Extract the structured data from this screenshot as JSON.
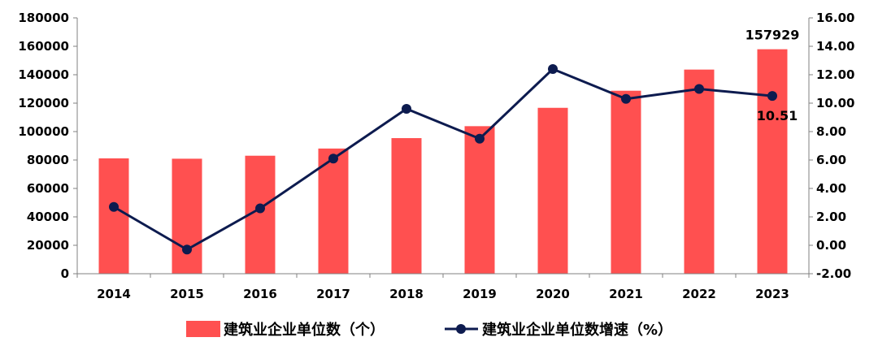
{
  "chart_data": {
    "type": "bar",
    "title": "",
    "categories": [
      "2014",
      "2015",
      "2016",
      "2017",
      "2018",
      "2019",
      "2020",
      "2021",
      "2022",
      "2023"
    ],
    "series": [
      {
        "name": "建筑业企业单位数（个）",
        "type": "bar",
        "axis": "left",
        "color": "#ff5050",
        "values": [
          81141,
          80911,
          83017,
          88074,
          95400,
          103805,
          116716,
          128746,
          143621,
          157929
        ]
      },
      {
        "name": "建筑业企业单位数增速（%）",
        "type": "line",
        "axis": "right",
        "color": "#0d1b4f",
        "values": [
          2.7,
          -0.3,
          2.6,
          6.1,
          9.6,
          7.5,
          12.4,
          10.3,
          11.0,
          10.51
        ]
      }
    ],
    "y_left": {
      "ylim": [
        0,
        180000
      ],
      "ticks": [
        "0",
        "20000",
        "40000",
        "60000",
        "80000",
        "100000",
        "120000",
        "140000",
        "160000",
        "180000"
      ]
    },
    "y_right": {
      "ylim": [
        -2,
        16
      ],
      "ticks": [
        "-2.00",
        "0.00",
        "2.00",
        "4.00",
        "6.00",
        "8.00",
        "10.00",
        "12.00",
        "14.00",
        "16.00"
      ]
    },
    "annotations": [
      {
        "series": 0,
        "index": 9,
        "text": "157929"
      },
      {
        "series": 1,
        "index": 9,
        "text": "10.51"
      }
    ],
    "grid": false,
    "legend_position": "bottom"
  }
}
